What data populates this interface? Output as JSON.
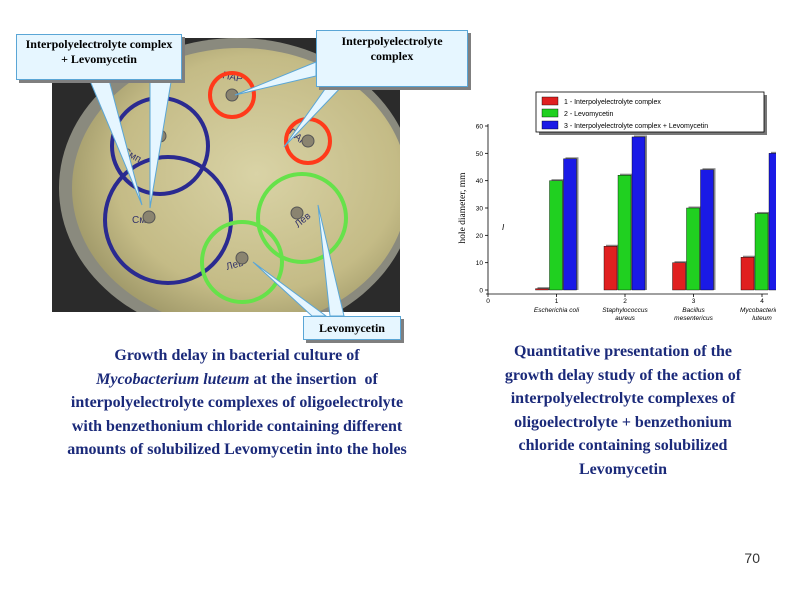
{
  "callouts": {
    "complex_plus_levomycetin": [
      "Interpolyelectrolyte  complex",
      "+ Levomycetin"
    ],
    "complex": [
      "Interpolyelectrolyte",
      "complex"
    ],
    "levomycetin": "Levomycetin"
  },
  "photo": {
    "colors": {
      "red_ring": "#ff3a1a",
      "blue_ring": "#2a2a90",
      "green_ring": "#66e24a",
      "agar": "#c9c08a",
      "background": "#2b2b2b"
    }
  },
  "captions": {
    "left": {
      "line1": "Growth delay in bacterial culture of",
      "line2_italic": "Mycobacterium luteum",
      "line2_rest": " at the insertion  of",
      "line3": "interpolyelectrolyte complexes of oligoelectrolyte",
      "line4": "with benzethonium  chloride  containing  different",
      "line5": "amounts  of solubilized   Levomycetin into the holes"
    },
    "right": {
      "line1": "Quantitative presentation of the",
      "line2": "growth delay study of the action of",
      "line3": "interpolyelectrolyte complexes of",
      "line4": "oligoelectrolyte + benzethonium",
      "line5": "chloride  containing  solubilized",
      "line6": "Levomycetin"
    }
  },
  "page_number": "70",
  "chart_data": {
    "type": "bar",
    "x_ticks": [
      "0",
      "1",
      "2",
      "3",
      "4"
    ],
    "categories": [
      [
        "Escherichia coli"
      ],
      [
        "Staphylococcus",
        "aureus"
      ],
      [
        "Bacillus",
        "mesentericus"
      ],
      [
        "Mycobacterium",
        "luteum"
      ]
    ],
    "series": [
      {
        "name": "1 - Interpolyelectrolyte complex",
        "color": "#e02020",
        "values": [
          0.5,
          16,
          10,
          12
        ]
      },
      {
        "name": "2 - Levomycetin",
        "color": "#20d020",
        "values": [
          40,
          42,
          30,
          28
        ]
      },
      {
        "name": "3 - Interpolyelectrolyte complex + Levomycetin",
        "color": "#1a1ae6",
        "values": [
          48,
          56,
          44,
          50
        ]
      }
    ],
    "ylabel": "hole diameter, mm",
    "ylim": [
      0,
      60
    ],
    "y_ticks": [
      0,
      10,
      20,
      30,
      40,
      50,
      60
    ],
    "stray_label": "I",
    "legend_position": "top-right"
  }
}
